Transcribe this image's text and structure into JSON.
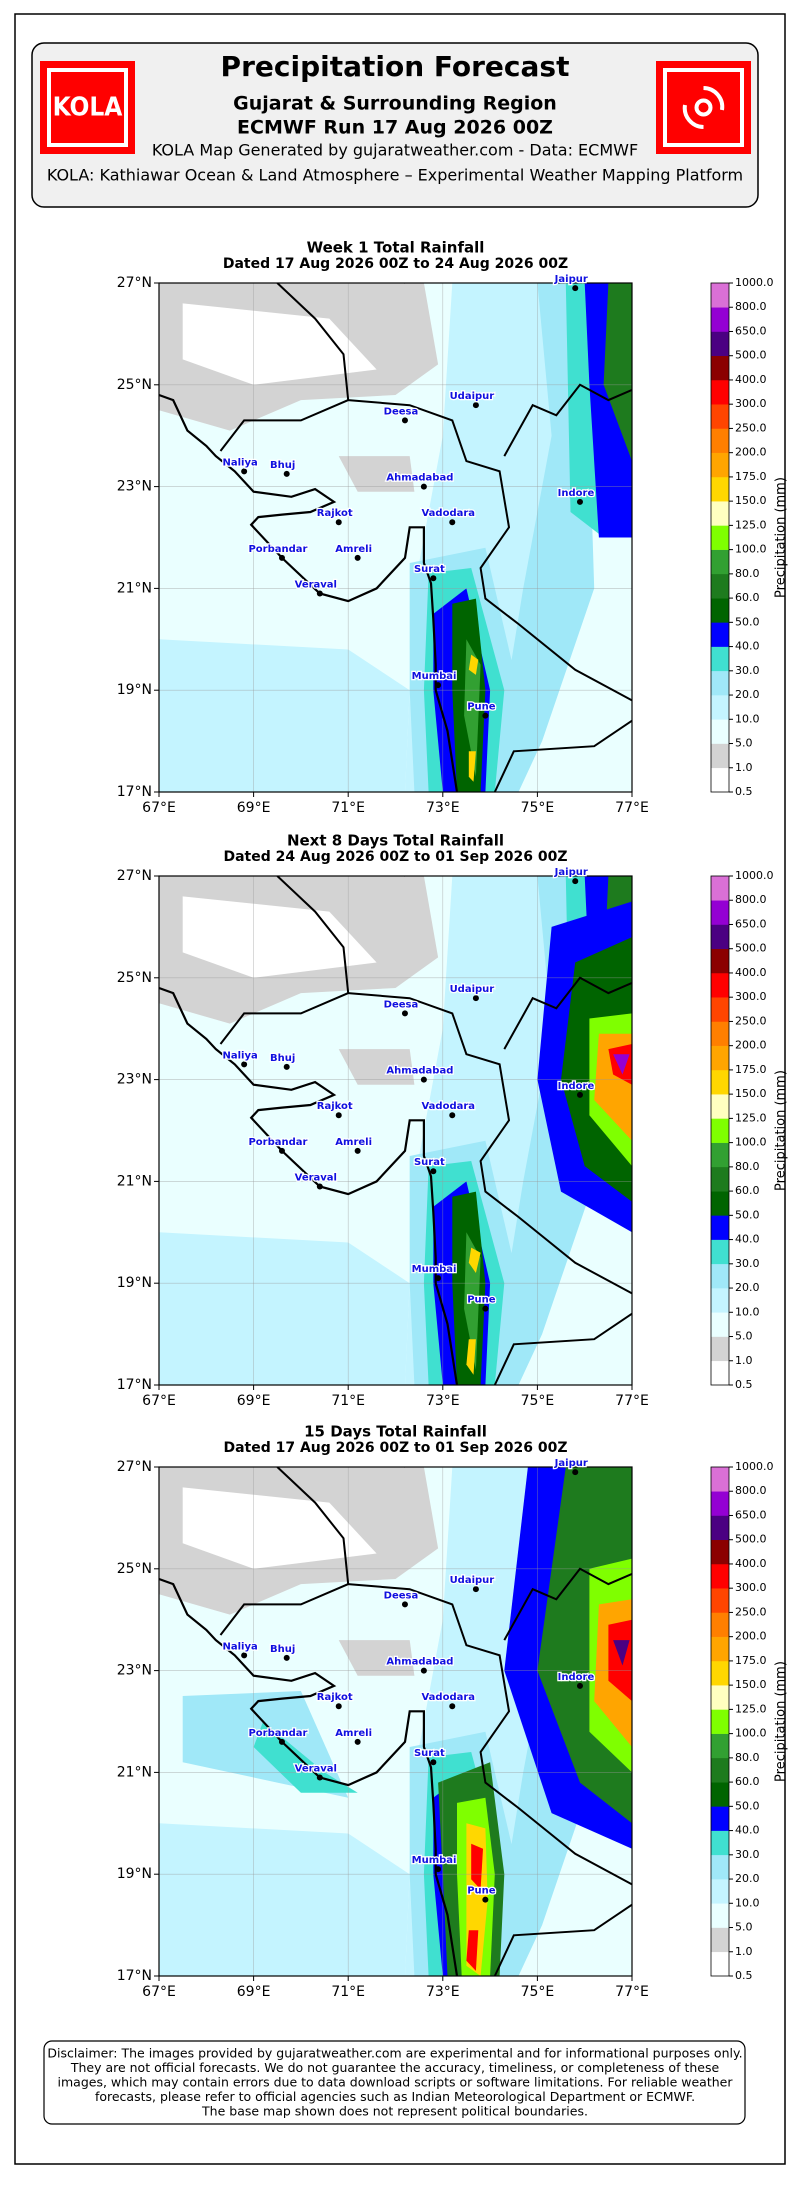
{
  "header": {
    "logo_text": "KOLA",
    "title": "Precipitation Forecast",
    "subtitle": "Gujarat & Surrounding Region",
    "run": "ECMWF Run 17 Aug 2026 00Z",
    "credit": "KOLA Map Generated by gujaratweather.com - Data: ECMWF",
    "platform": "KOLA: Kathiawar Ocean & Land Atmosphere – Experimental Weather Mapping Platform"
  },
  "lat_ticks": [
    "27°N",
    "25°N",
    "23°N",
    "21°N",
    "19°N",
    "17°N"
  ],
  "lon_ticks": [
    "67°E",
    "69°E",
    "71°E",
    "73°E",
    "75°E",
    "77°E"
  ],
  "cities": [
    "Jaipur",
    "Udaipur",
    "Deesa",
    "Naliya",
    "Bhuj",
    "Ahmadabad",
    "Indore",
    "Rajkot",
    "Vadodara",
    "Porbandar",
    "Amreli",
    "Surat",
    "Veraval",
    "Mumbai",
    "Pune"
  ],
  "colorbar": {
    "title": "Precipitation (mm)",
    "levels": [
      "0.5",
      "1.0",
      "5.0",
      "10.0",
      "20.0",
      "30.0",
      "40.0",
      "50.0",
      "60.0",
      "80.0",
      "100.0",
      "125.0",
      "150.0",
      "175.0",
      "200.0",
      "250.0",
      "300.0",
      "400.0",
      "500.0",
      "650.0",
      "800.0",
      "1000.0"
    ],
    "colors": [
      "#ffffff",
      "#d3d3d3",
      "#eaffff",
      "#c4f4ff",
      "#a0e8f8",
      "#40e0d0",
      "#0000ff",
      "#006400",
      "#1e7b1e",
      "#32a032",
      "#7fff00",
      "#ffffc0",
      "#ffd700",
      "#ffa500",
      "#ff7f00",
      "#ff4500",
      "#ff0000",
      "#8b0000",
      "#4b0082",
      "#9400d3",
      "#da70d6"
    ]
  },
  "maps": [
    {
      "title": "Week 1 Total Rainfall",
      "dates": "Dated 17 Aug 2026 00Z to 24 Aug 2026 00Z"
    },
    {
      "title": "Next 8 Days Total Rainfall",
      "dates": "Dated 24 Aug 2026 00Z to 01 Sep 2026 00Z"
    },
    {
      "title": "15 Days Total Rainfall",
      "dates": "Dated 17 Aug 2026 00Z to 01 Sep 2026 00Z"
    }
  ],
  "disclaimer": [
    "Disclaimer: The images provided by gujaratweather.com are experimental and for informational purposes only.",
    "They are not official forecasts. We do not guarantee the accuracy, timeliness, or completeness of these",
    "images, which may contain errors due to data download scripts or software limitations. For reliable weather",
    "forecasts, please refer to official agencies such as Indian Meteorological Department or ECMWF.",
    "The base map shown does not represent political boundaries."
  ]
}
